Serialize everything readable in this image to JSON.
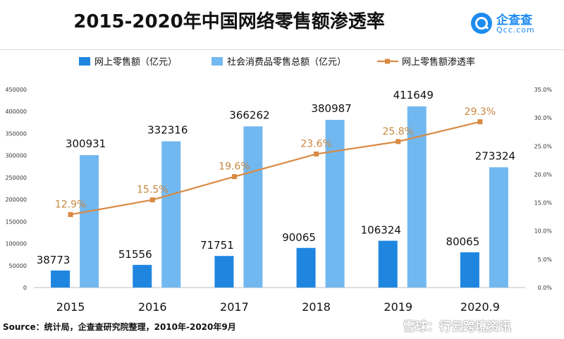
{
  "header": {
    "title": "2015-2020年中国网络零售额渗透率",
    "logo_name": "企查查",
    "logo_sub": "Qcc.com"
  },
  "legend": {
    "online": "网上零售额（亿元）",
    "total": "社会消费品零售总额（亿元）",
    "rate": "网上零售额渗透率"
  },
  "colors": {
    "online": "#1f86e0",
    "total": "#72b8f0",
    "rate": "#d98a43",
    "rate_label": "#c8873f"
  },
  "source": "Source：统计局，企查查研究院整理，2010年-2020年9月",
  "watermark": "雪球：行云跨境资讯",
  "chart_data": {
    "type": "bar",
    "categories": [
      "2015",
      "2016",
      "2017",
      "2018",
      "2019",
      "2020.9"
    ],
    "series": [
      {
        "name": "网上零售额（亿元）",
        "type": "bar",
        "values": [
          38773,
          51556,
          71751,
          90065,
          106324,
          80065
        ]
      },
      {
        "name": "社会消费品零售总额（亿元）",
        "type": "bar",
        "values": [
          300931,
          332316,
          366262,
          380987,
          411649,
          273324
        ]
      },
      {
        "name": "网上零售额渗透率",
        "type": "line",
        "axis": "right",
        "values": [
          12.9,
          15.5,
          19.6,
          23.6,
          25.8,
          29.3
        ],
        "labels": [
          "12.9%",
          "15.5%",
          "19.6%",
          "23.6%",
          "25.8%",
          "29.3%"
        ]
      }
    ],
    "y_left": {
      "ylim": [
        0,
        450000
      ],
      "ticks": [
        "0",
        "50000",
        "100000",
        "150000",
        "200000",
        "250000",
        "300000",
        "350000",
        "400000",
        "450000"
      ]
    },
    "y_right": {
      "ylim": [
        0,
        35
      ],
      "ticks": [
        "0.0%",
        "5.0%",
        "10.0%",
        "15.0%",
        "20.0%",
        "25.0%",
        "30.0%",
        "35.0%"
      ]
    },
    "grid": false,
    "legend_position": "top"
  }
}
